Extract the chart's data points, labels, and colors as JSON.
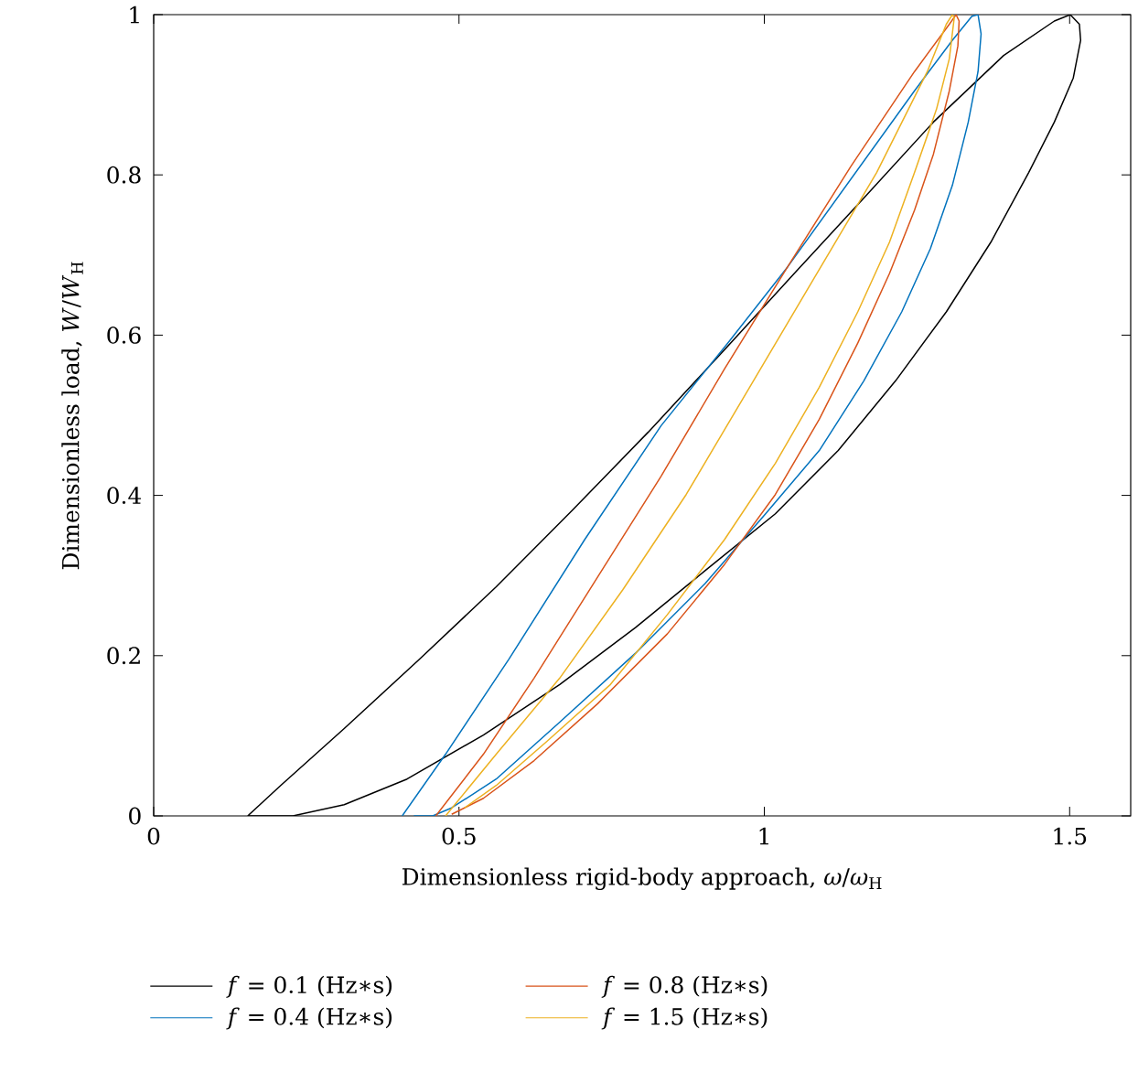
{
  "chart_data": {
    "type": "line",
    "xlabel": "Dimensionless rigid-body approach, *ω*/*ω*$_{H}$",
    "ylabel": "Dimensionless load, *W*/*W*$_{H}$",
    "xlim": [
      0,
      1.6
    ],
    "ylim": [
      0,
      1
    ],
    "xticks": [
      0,
      0.5,
      1,
      1.5
    ],
    "yticks": [
      0,
      0.2,
      0.4,
      0.6,
      0.8,
      1
    ],
    "legend": "bottom",
    "grid": false,
    "marker": "none",
    "line_style": "solid",
    "series": [
      {
        "name": "*f* = 0.1 (Hz∗s)",
        "color": "#000000",
        "x": [
          0.154,
          0.208,
          0.312,
          0.436,
          0.561,
          0.685,
          0.81,
          0.935,
          1.049,
          1.163,
          1.277,
          1.392,
          1.475,
          1.501,
          1.516,
          1.518,
          1.506,
          1.475,
          1.433,
          1.371,
          1.298,
          1.215,
          1.121,
          1.018,
          0.903,
          0.789,
          0.665,
          0.54,
          0.415,
          0.312,
          0.228,
          0.182,
          0.156
        ],
        "values": [
          0,
          0.038,
          0.109,
          0.196,
          0.286,
          0.381,
          0.479,
          0.582,
          0.677,
          0.771,
          0.866,
          0.949,
          0.992,
          1.0,
          0.988,
          0.968,
          0.921,
          0.866,
          0.803,
          0.716,
          0.629,
          0.543,
          0.456,
          0.377,
          0.306,
          0.235,
          0.164,
          0.101,
          0.046,
          0.014,
          0,
          0,
          0
        ]
      },
      {
        "name": "*f* = 0.4 (Hz∗s)",
        "color": "#0072bd",
        "x": [
          0.407,
          0.478,
          0.582,
          0.706,
          0.831,
          0.94,
          1.038,
          1.142,
          1.246,
          1.308,
          1.34,
          1.35,
          1.355,
          1.35,
          1.334,
          1.308,
          1.272,
          1.225,
          1.163,
          1.09,
          1.002,
          0.903,
          0.789,
          0.665,
          0.561,
          0.488,
          0.457,
          0.426
        ],
        "values": [
          0,
          0.077,
          0.196,
          0.345,
          0.487,
          0.59,
          0.685,
          0.795,
          0.905,
          0.968,
          0.998,
          1.0,
          0.976,
          0.929,
          0.866,
          0.787,
          0.708,
          0.629,
          0.543,
          0.456,
          0.377,
          0.29,
          0.203,
          0.117,
          0.046,
          0.01,
          0,
          0
        ]
      },
      {
        "name": "*f* = 0.8 (Hz∗s)",
        "color": "#d95319",
        "x": [
          0.462,
          0.54,
          0.623,
          0.727,
          0.831,
          0.935,
          1.038,
          1.142,
          1.246,
          1.303,
          1.314,
          1.319,
          1.317,
          1.303,
          1.277,
          1.246,
          1.205,
          1.153,
          1.09,
          1.018,
          0.935,
          0.841,
          0.727,
          0.623,
          0.54,
          0.488
        ],
        "values": [
          0,
          0.077,
          0.172,
          0.298,
          0.424,
          0.558,
          0.685,
          0.811,
          0.929,
          0.988,
          1.0,
          0.992,
          0.961,
          0.905,
          0.826,
          0.756,
          0.677,
          0.59,
          0.495,
          0.401,
          0.314,
          0.227,
          0.14,
          0.069,
          0.022,
          0.002
        ]
      },
      {
        "name": "*f* = 1.5 (Hz∗s)",
        "color": "#edb120",
        "x": [
          0.478,
          0.561,
          0.665,
          0.768,
          0.872,
          0.976,
          1.08,
          1.184,
          1.267,
          1.298,
          1.308,
          1.311,
          1.303,
          1.282,
          1.246,
          1.205,
          1.153,
          1.09,
          1.018,
          0.935,
          0.841,
          0.748,
          0.644,
          0.561,
          0.509
        ],
        "values": [
          0,
          0.077,
          0.172,
          0.282,
          0.401,
          0.535,
          0.669,
          0.803,
          0.929,
          0.988,
          1.0,
          0.996,
          0.945,
          0.882,
          0.803,
          0.716,
          0.629,
          0.535,
          0.44,
          0.345,
          0.251,
          0.164,
          0.093,
          0.038,
          0.01
        ]
      }
    ]
  }
}
